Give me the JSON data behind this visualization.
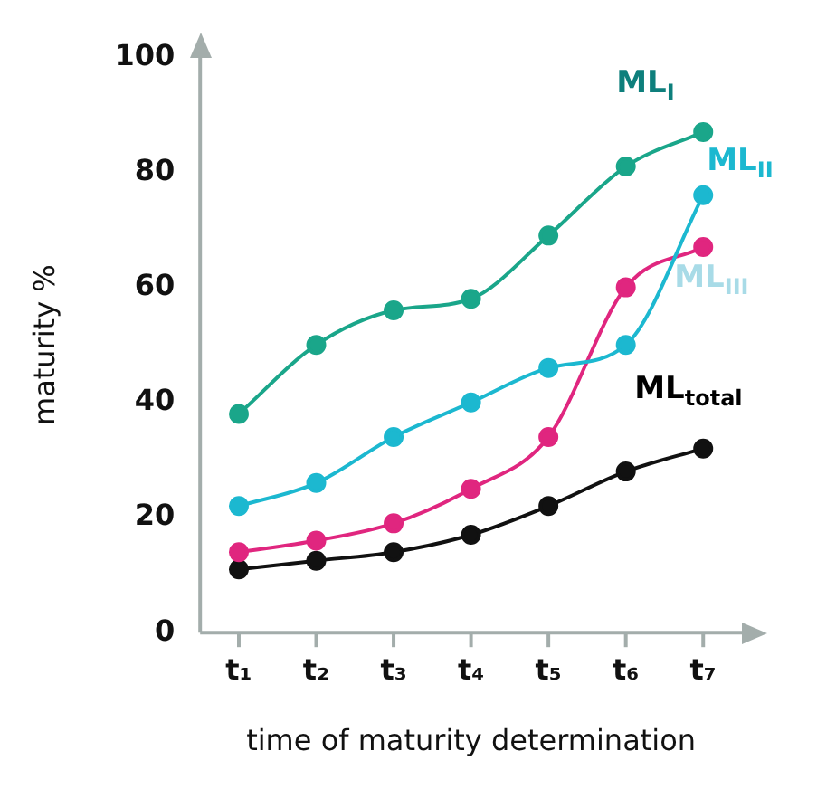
{
  "chart_data": {
    "type": "line",
    "xlabel": "time of maturity determination",
    "ylabel": "maturity %",
    "categories": [
      "t₁",
      "t₂",
      "t₃",
      "t₄",
      "t₅",
      "t₆",
      "t₇"
    ],
    "series": [
      {
        "name": "ML$_{I}$",
        "color": "#1aa68a",
        "values": [
          38,
          50,
          56,
          58,
          69,
          81,
          87
        ]
      },
      {
        "name": "ML$_{II}$",
        "color": "#1cb8d0",
        "values": [
          22,
          26,
          34,
          40,
          46,
          50,
          76
        ]
      },
      {
        "name": "ML$_{III}$",
        "color": "#e0267f",
        "values": [
          14,
          16,
          19,
          25,
          34,
          60,
          67
        ]
      },
      {
        "name": "ML$_{total}$",
        "color": "#111111",
        "values": [
          11,
          12.5,
          14,
          17,
          22,
          28,
          32
        ]
      }
    ],
    "ylim": [
      0,
      100
    ],
    "yticks": [
      0,
      20,
      40,
      60,
      80,
      100
    ],
    "grid": false,
    "legend": false,
    "marker": "circle",
    "line_style": "solid"
  }
}
